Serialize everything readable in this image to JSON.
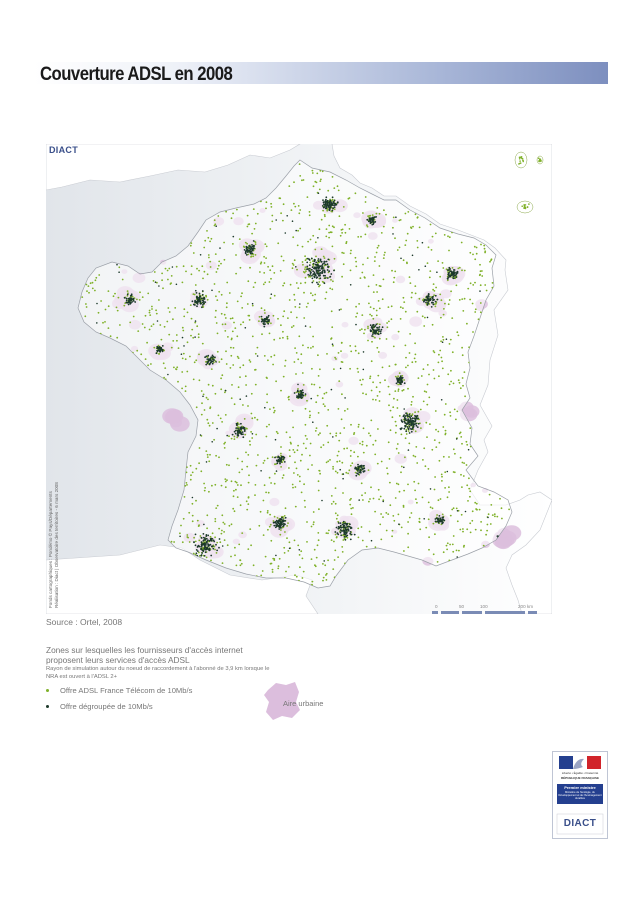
{
  "title": "Couverture ADSL en 2008",
  "map": {
    "brand_label": "DIACT",
    "credit_lines": [
      "Fonds cartographiques : Pondémo © Pays/Départements",
      "Réalisation : Diact | Observatoire des territoires - 6 mars 2008"
    ],
    "source": "Source : Ortel, 2008",
    "scale": {
      "ticks": [
        "0",
        "50",
        "100",
        "200 km"
      ]
    }
  },
  "legend": {
    "title": "Zones sur lesquelles les fournisseurs d'accès internet proposent leurs services d'accès ADSL",
    "subtitle": "Rayon de simulation autour du noeud de raccordement à l'abonné de 3,9 km lorsque le NRA est ouvert à l'ADSL 2+",
    "items": [
      {
        "label": "Offre ADSL France Télécom de 10Mb/s",
        "color": "#7fb128"
      },
      {
        "label": "Offre dégroupée de 10Mb/s",
        "color": "#1d3a2b"
      }
    ],
    "urban": {
      "label": "Aire urbaine",
      "color": "#dcbedd"
    }
  },
  "logo": {
    "motto": "Liberté • Égalité • Fraternité",
    "republic": "RÉPUBLIQUE FRANÇAISE",
    "office": "Premier ministre",
    "ministry": "Ministère de l'écologie, du Développement et de l'Aménagement durables",
    "agency": "DIACT",
    "colors": {
      "blue": "#243f8f",
      "red": "#d1242b"
    }
  }
}
